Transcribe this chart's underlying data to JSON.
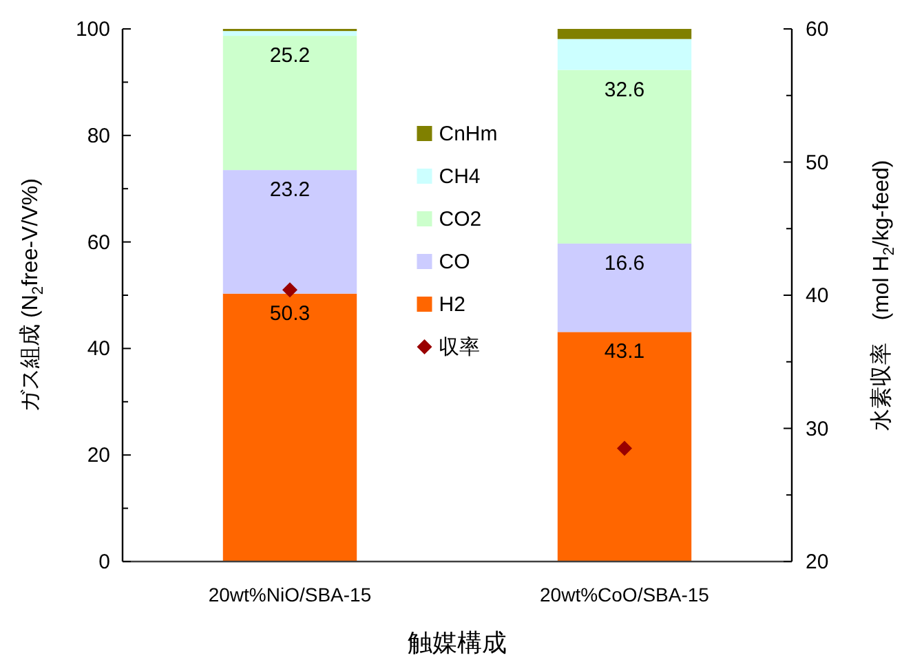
{
  "chart_data": {
    "type": "bar",
    "stacked": true,
    "categories": [
      "20wt%NiO/SBA-15",
      "20wt%CoO/SBA-15"
    ],
    "xlabel": "触媒構成",
    "ylabel": "ガス組成 (N$_{2}$free-V/V%)",
    "y2label": "水素収率　(mol H$_{2}$/kg-feed)",
    "ylim": [
      0,
      100
    ],
    "yticks": [
      0,
      {
        "value": 10,
        "label": null
      },
      20,
      {
        "value": 30,
        "label": null
      },
      40,
      {
        "value": 50,
        "label": null
      },
      60,
      {
        "value": 70,
        "label": null
      },
      80,
      {
        "value": 90,
        "label": null
      },
      100
    ],
    "y2lim": [
      20,
      60
    ],
    "y2ticks": [
      20,
      {
        "value": 25,
        "label": null
      },
      30,
      {
        "value": 35,
        "label": null
      },
      40,
      {
        "value": 45,
        "label": null
      },
      50,
      {
        "value": 55,
        "label": null
      },
      60
    ],
    "legend": "center",
    "series": [
      {
        "name": "H2",
        "color": "#ff6600",
        "values": [
          50.3,
          43.1
        ],
        "value_labels": [
          "50.3",
          "43.1"
        ]
      },
      {
        "name": "CO",
        "color": "#ccccff",
        "values": [
          23.2,
          16.6
        ],
        "value_labels": [
          "23.2",
          "16.6"
        ]
      },
      {
        "name": "CO2",
        "color": "#ccffcc",
        "values": [
          25.2,
          32.6
        ],
        "value_labels": [
          "25.2",
          "32.6"
        ]
      },
      {
        "name": "CH4",
        "color": "#ccffff",
        "values": [
          0.9,
          5.8
        ]
      },
      {
        "name": "CnHm",
        "color": "#808000",
        "values": [
          0.4,
          1.9
        ]
      },
      {
        "name": "収率",
        "type": "scatter",
        "axis": "y2",
        "marker": "diamond",
        "color": "#990000",
        "values": [
          40.4,
          28.5
        ]
      }
    ]
  }
}
